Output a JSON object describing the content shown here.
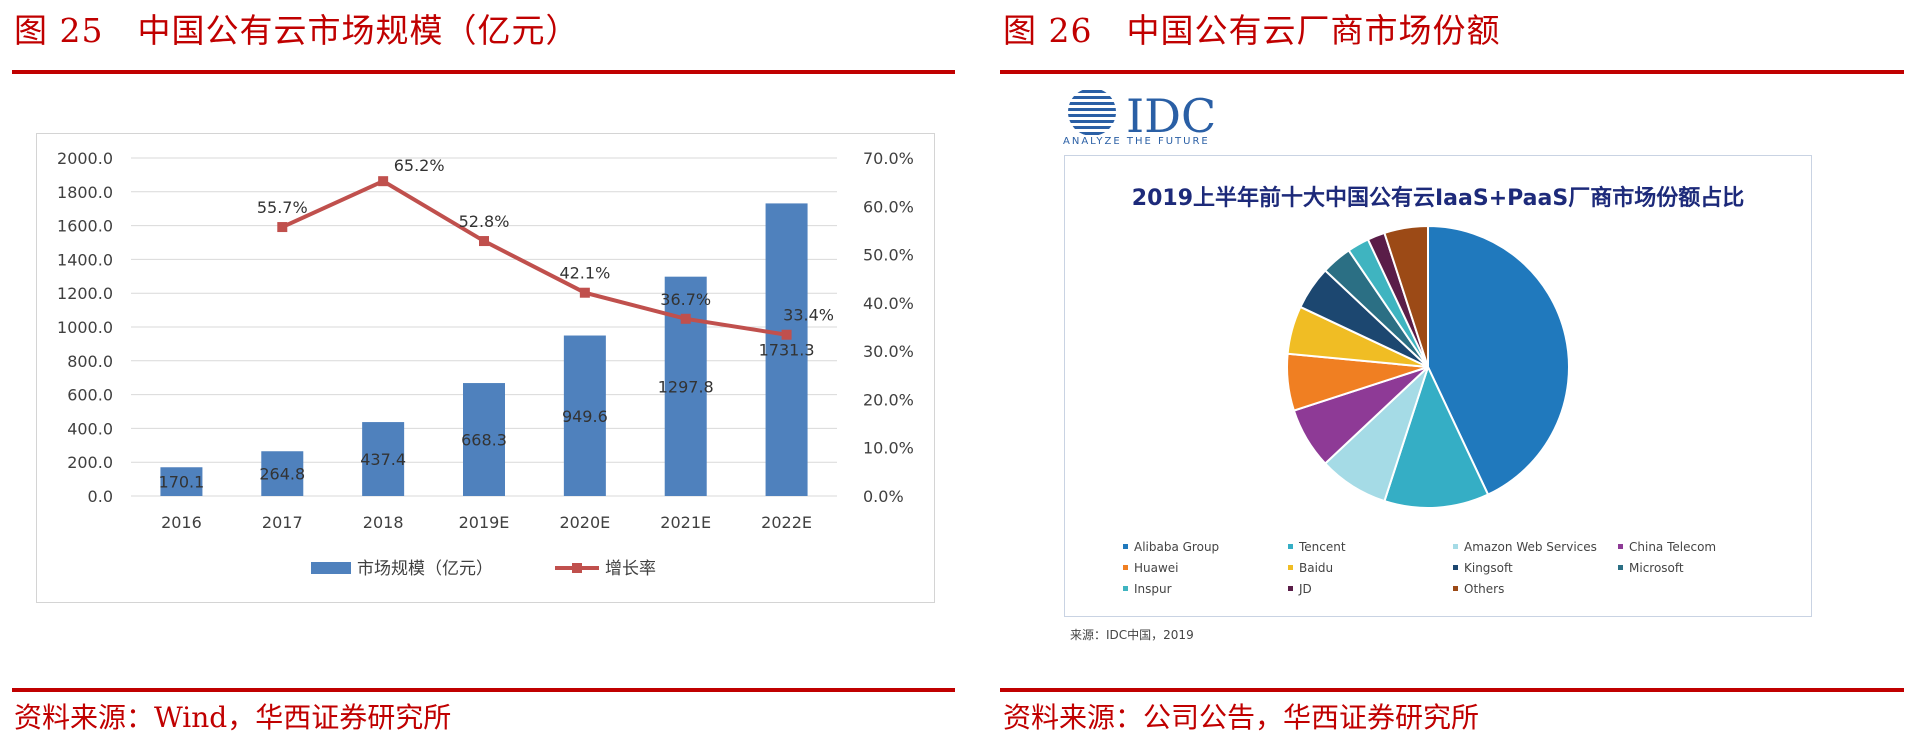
{
  "left_panel": {
    "figure_number": "图 25",
    "figure_title": "中国公有云市场规模（亿元）",
    "source_label": "资料来源：Wind，华西证券研究所",
    "chart_data": {
      "type": "bar",
      "categories": [
        "2016",
        "2017",
        "2018",
        "2019E",
        "2020E",
        "2021E",
        "2022E"
      ],
      "series": [
        {
          "name": "市场规模（亿元）",
          "type": "bar",
          "axis": "left",
          "values": [
            170.1,
            264.8,
            437.4,
            668.3,
            949.6,
            1297.8,
            1731.3
          ],
          "labels": [
            "170.1",
            "264.8",
            "437.4",
            "668.3",
            "949.6",
            "1297.8",
            "1731.3"
          ]
        },
        {
          "name": "增长率",
          "type": "line",
          "axis": "right",
          "values": [
            null,
            55.7,
            65.2,
            52.8,
            42.1,
            36.7,
            33.4
          ],
          "labels": [
            "",
            "55.7%",
            "65.2%",
            "52.8%",
            "42.1%",
            "36.7%",
            "33.4%"
          ]
        }
      ],
      "y_left": {
        "ticks": [
          "2000.0",
          "1800.0",
          "1600.0",
          "1400.0",
          "1200.0",
          "1000.0",
          "800.0",
          "600.0",
          "400.0",
          "200.0",
          "0.0"
        ],
        "range": [
          0,
          2000
        ]
      },
      "y_right": {
        "ticks": [
          "70.0%",
          "60.0%",
          "50.0%",
          "40.0%",
          "30.0%",
          "20.0%",
          "10.0%",
          "0.0%"
        ],
        "range": [
          0,
          70
        ]
      },
      "grid": true,
      "legend_position": "bottom",
      "colors": {
        "bar": "#4f81bd",
        "line": "#c0504d"
      }
    }
  },
  "right_panel": {
    "figure_number": "图 26",
    "figure_title": "中国公有云厂商市场份额",
    "source_label": "资料来源：公司公告，华西证券研究所",
    "logo_text": "IDC",
    "logo_tagline": "ANALYZE THE FUTURE",
    "chart_note": "来源：IDC中国，2019",
    "chart_data": {
      "type": "pie",
      "title": "2019上半年前十大中国公有云IaaS+PaaS厂商市场份额占比",
      "labels": [
        "Alibaba Group",
        "Tencent",
        "Amazon Web Services",
        "China Telecom",
        "Huawei",
        "Baidu",
        "Kingsoft",
        "Microsoft",
        "Inspur",
        "JD",
        "Others"
      ],
      "values": [
        43.0,
        12.0,
        8.0,
        7.0,
        6.5,
        5.5,
        5.0,
        3.5,
        2.5,
        2.0,
        5.0
      ],
      "colors": [
        "#2079bd",
        "#35aec5",
        "#a5dbe6",
        "#8e3a96",
        "#f07f22",
        "#f0bd24",
        "#1c4770",
        "#2b6f84",
        "#3fb4c0",
        "#5a1d48",
        "#9c4a16"
      ],
      "legend_position": "bottom"
    }
  }
}
